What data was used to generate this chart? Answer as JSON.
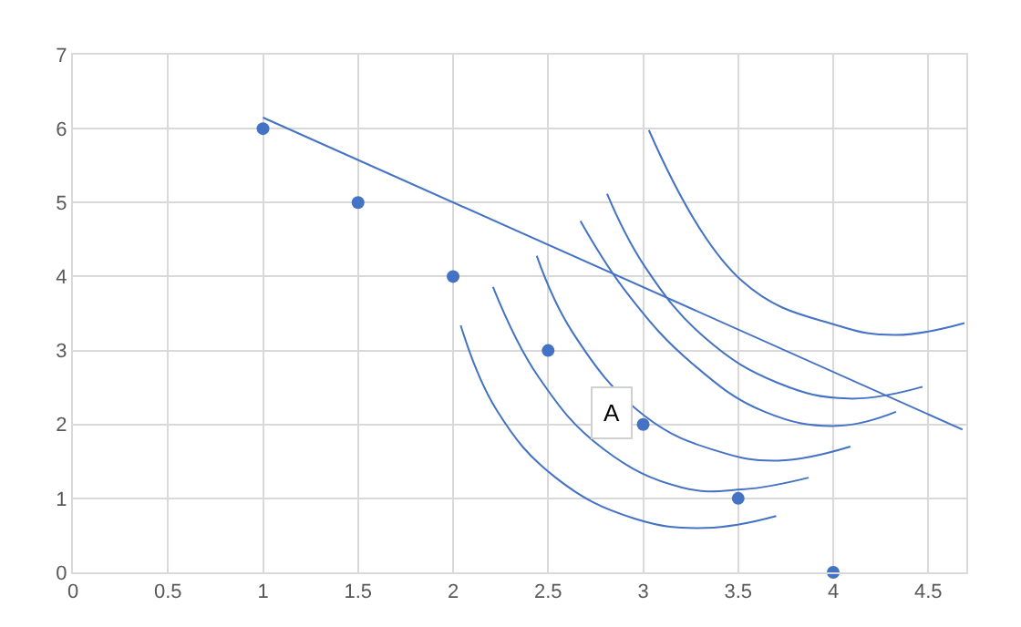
{
  "chart_data": {
    "type": "scatter",
    "xlim": [
      0,
      4.7
    ],
    "xticks": [
      0,
      0.5,
      1,
      1.5,
      2,
      2.5,
      3,
      3.5,
      4,
      4.5
    ],
    "ylim": [
      0,
      7
    ],
    "yticks": [
      0,
      1,
      2,
      3,
      4,
      5,
      6,
      7
    ],
    "grid": true,
    "annotations": [
      {
        "text": "A",
        "x": 2.83,
        "y": 2.15
      }
    ],
    "series": [
      {
        "marker": "circle",
        "color": "#4472c4",
        "x": [
          1,
          1.5,
          2,
          2.5,
          3,
          3.5,
          4
        ],
        "values": [
          6,
          5,
          4,
          3,
          2,
          1,
          0
        ]
      },
      {
        "type": "line",
        "marker": "none",
        "color": "#4472c4",
        "x": [
          1,
          4.68
        ],
        "values": [
          6.15,
          1.93
        ]
      },
      {
        "type": "line",
        "marker": "none",
        "color": "#4472c4",
        "x": [
          3.03,
          3.52,
          4.02,
          4.33,
          4.69
        ],
        "values": [
          5.98,
          3.94,
          3.34,
          3.21,
          3.37
        ]
      },
      {
        "type": "line",
        "marker": "none",
        "color": "#4472c4",
        "x": [
          2.81,
          3.01,
          3.33,
          3.71,
          4.08,
          4.47
        ],
        "values": [
          5.12,
          4.13,
          3.16,
          2.56,
          2.35,
          2.51
        ]
      },
      {
        "type": "line",
        "marker": "none",
        "color": "#4472c4",
        "x": [
          2.67,
          2.92,
          3.26,
          3.64,
          4.02,
          4.33
        ],
        "values": [
          4.75,
          3.76,
          2.82,
          2.17,
          1.98,
          2.17
        ]
      },
      {
        "type": "line",
        "marker": "none",
        "color": "#4472c4",
        "x": [
          2.44,
          2.63,
          3.01,
          3.39,
          3.71,
          4.09
        ],
        "values": [
          4.28,
          3.24,
          2.11,
          1.64,
          1.51,
          1.7
        ]
      },
      {
        "type": "line",
        "marker": "none",
        "color": "#4472c4",
        "x": [
          2.21,
          2.45,
          2.79,
          3.2,
          3.52,
          3.87
        ],
        "values": [
          3.86,
          2.64,
          1.67,
          1.15,
          1.12,
          1.28
        ]
      },
      {
        "type": "line",
        "marker": "none",
        "color": "#4472c4",
        "x": [
          2.04,
          2.23,
          2.54,
          2.95,
          3.33,
          3.7
        ],
        "values": [
          3.34,
          2.19,
          1.28,
          0.73,
          0.6,
          0.76
        ]
      }
    ]
  }
}
